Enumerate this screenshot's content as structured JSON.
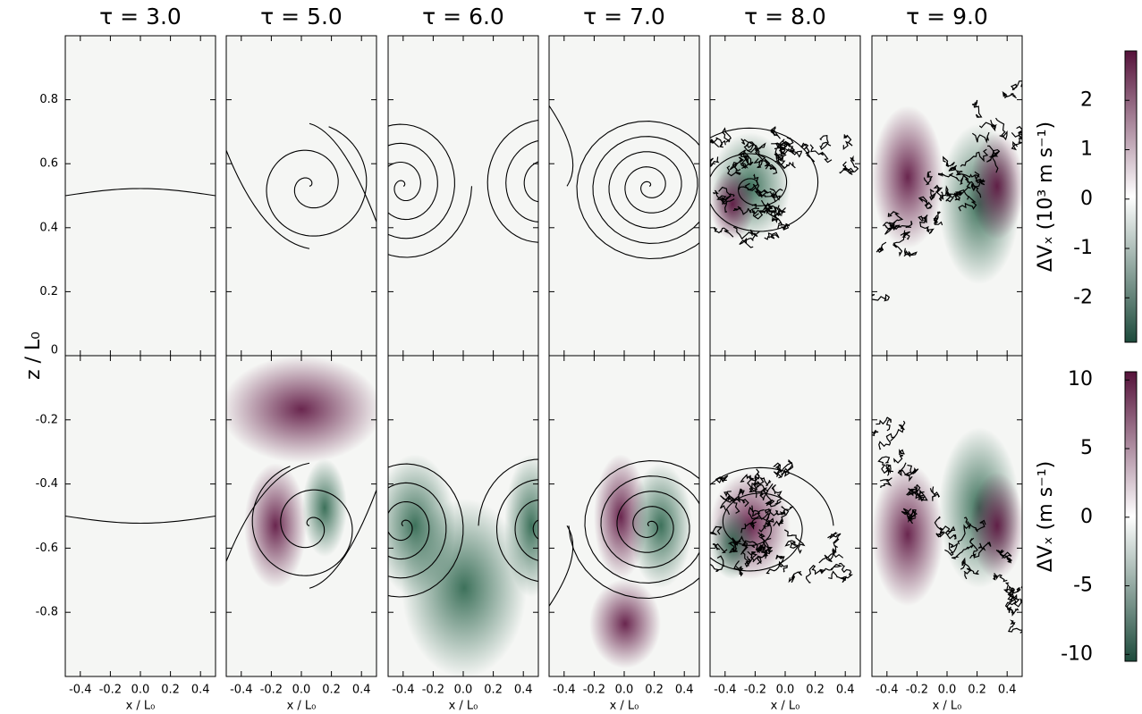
{
  "chart_data": {
    "type": "heatmap-grid",
    "columns": [
      "τ = 3.0",
      "τ = 5.0",
      "τ = 6.0",
      "τ = 7.0",
      "τ = 8.0",
      "τ = 9.0"
    ],
    "xlabel": "x / L₀",
    "ylabel": "z / L₀",
    "xlim": [
      -0.5,
      0.5
    ],
    "xticks": [
      -0.4,
      -0.2,
      {
        "value": 0,
        "label": "0.0"
      },
      0.2,
      0.4
    ],
    "rows": [
      {
        "ylim": [
          0,
          1
        ],
        "yticks": [
          0,
          0.2,
          0.4,
          0.6,
          0.8
        ],
        "colorbar": {
          "label": "ΔVₓ (10³ m s⁻¹)",
          "lim": [
            -2.9,
            3.0
          ],
          "ticks": [
            -2,
            -1,
            0,
            1,
            2
          ],
          "colors": [
            "#1d4a3b",
            "#ffffff",
            "#55123a"
          ]
        }
      },
      {
        "ylim": [
          -1,
          0
        ],
        "yticks": [
          -0.8,
          -0.6,
          -0.4,
          -0.2
        ],
        "colorbar": {
          "label": "ΔVₓ (m s⁻¹)",
          "lim": [
            -10.5,
            10.6
          ],
          "ticks": [
            -10,
            -5,
            0,
            5,
            10
          ],
          "colors": [
            "#1d4a3b",
            "#ffffff",
            "#55123a"
          ]
        }
      }
    ]
  }
}
